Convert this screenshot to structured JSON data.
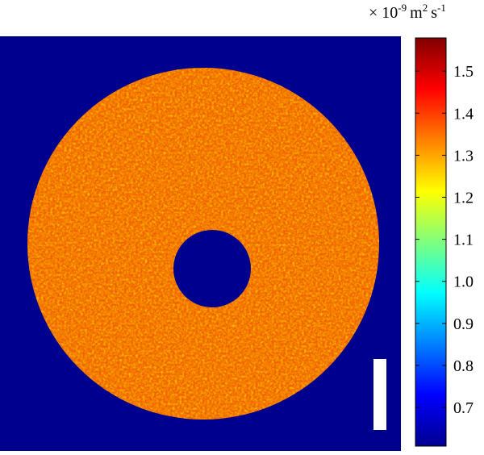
{
  "colorbar": {
    "unit": {
      "prefix": "× 10",
      "exponent": "-9",
      "meter": "m",
      "meter_power": "2",
      "second": "s",
      "second_power": "-1"
    },
    "lim": [
      0.608,
      1.579
    ],
    "ticks": [
      0.7,
      0.8,
      0.9,
      {
        "value": 1.0,
        "label": "1.0"
      },
      1.1,
      1.2,
      1.3,
      1.4,
      1.5
    ]
  }
}
